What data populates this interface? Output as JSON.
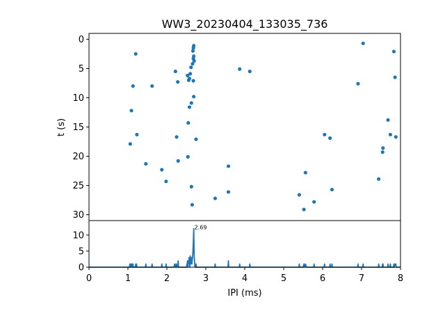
{
  "chart_data": [
    {
      "type": "scatter",
      "title": "WW3_20230404_133035_736",
      "xlabel": "",
      "ylabel": "t (s)",
      "xlim": [
        0,
        8
      ],
      "ylim": [
        31,
        -1
      ],
      "y_inverted": true,
      "yticks": [
        0,
        5,
        10,
        15,
        20,
        25,
        30
      ],
      "color": "#1f77b4",
      "points": [
        {
          "x": 2.69,
          "y": 1.1
        },
        {
          "x": 2.68,
          "y": 1.5
        },
        {
          "x": 2.67,
          "y": 2.0
        },
        {
          "x": 2.69,
          "y": 2.9
        },
        {
          "x": 2.68,
          "y": 3.3
        },
        {
          "x": 2.7,
          "y": 3.7
        },
        {
          "x": 2.66,
          "y": 4.2
        },
        {
          "x": 2.62,
          "y": 4.8
        },
        {
          "x": 2.6,
          "y": 5.9
        },
        {
          "x": 2.53,
          "y": 6.2
        },
        {
          "x": 2.58,
          "y": 6.7
        },
        {
          "x": 2.56,
          "y": 7.0
        },
        {
          "x": 2.68,
          "y": 7.1
        },
        {
          "x": 2.69,
          "y": 9.8
        },
        {
          "x": 2.63,
          "y": 10.9
        },
        {
          "x": 2.58,
          "y": 11.6
        },
        {
          "x": 2.55,
          "y": 14.3
        },
        {
          "x": 2.75,
          "y": 17.1
        },
        {
          "x": 2.54,
          "y": 20.1
        },
        {
          "x": 2.63,
          "y": 25.2
        },
        {
          "x": 2.65,
          "y": 28.3
        },
        {
          "x": 1.2,
          "y": 2.5
        },
        {
          "x": 1.13,
          "y": 8.0
        },
        {
          "x": 1.09,
          "y": 12.2
        },
        {
          "x": 1.23,
          "y": 16.3
        },
        {
          "x": 1.06,
          "y": 17.9
        },
        {
          "x": 1.46,
          "y": 21.3
        },
        {
          "x": 1.62,
          "y": 8.0
        },
        {
          "x": 1.87,
          "y": 22.3
        },
        {
          "x": 1.98,
          "y": 24.3
        },
        {
          "x": 2.22,
          "y": 5.5
        },
        {
          "x": 2.28,
          "y": 7.3
        },
        {
          "x": 2.25,
          "y": 16.7
        },
        {
          "x": 2.29,
          "y": 20.8
        },
        {
          "x": 3.24,
          "y": 27.2
        },
        {
          "x": 3.58,
          "y": 21.7
        },
        {
          "x": 3.58,
          "y": 26.1
        },
        {
          "x": 3.87,
          "y": 5.1
        },
        {
          "x": 4.13,
          "y": 5.5
        },
        {
          "x": 5.4,
          "y": 26.6
        },
        {
          "x": 5.52,
          "y": 29.1
        },
        {
          "x": 5.56,
          "y": 22.8
        },
        {
          "x": 5.78,
          "y": 27.8
        },
        {
          "x": 6.05,
          "y": 16.3
        },
        {
          "x": 6.19,
          "y": 16.9
        },
        {
          "x": 6.24,
          "y": 25.7
        },
        {
          "x": 6.91,
          "y": 7.6
        },
        {
          "x": 7.04,
          "y": 0.7
        },
        {
          "x": 7.44,
          "y": 23.9
        },
        {
          "x": 7.54,
          "y": 19.3
        },
        {
          "x": 7.55,
          "y": 18.6
        },
        {
          "x": 7.68,
          "y": 13.8
        },
        {
          "x": 7.74,
          "y": 16.3
        },
        {
          "x": 7.83,
          "y": 2.1
        },
        {
          "x": 7.86,
          "y": 6.5
        },
        {
          "x": 7.88,
          "y": 16.7
        }
      ]
    },
    {
      "type": "line",
      "title": "",
      "xlabel": "IPI (ms)",
      "ylabel": "",
      "xlim": [
        0,
        8
      ],
      "ylim": [
        0,
        14.5
      ],
      "xticks": [
        0,
        1,
        2,
        3,
        4,
        5,
        6,
        7,
        8
      ],
      "yticks": [
        0,
        5,
        10
      ],
      "color": "#1f77b4",
      "annotation": {
        "text": "2.69",
        "x": 2.69,
        "y": 12.0
      },
      "x": [
        0,
        1.04,
        1.05,
        1.06,
        1.08,
        1.09,
        1.1,
        1.12,
        1.13,
        1.14,
        1.19,
        1.2,
        1.21,
        1.22,
        1.23,
        1.24,
        1.45,
        1.46,
        1.47,
        1.61,
        1.62,
        1.63,
        1.86,
        1.87,
        1.88,
        1.97,
        1.98,
        1.99,
        2.18,
        2.2,
        2.22,
        2.24,
        2.25,
        2.26,
        2.28,
        2.29,
        2.3,
        2.5,
        2.52,
        2.53,
        2.54,
        2.55,
        2.56,
        2.57,
        2.58,
        2.59,
        2.6,
        2.61,
        2.62,
        2.63,
        2.64,
        2.65,
        2.66,
        2.67,
        2.68,
        2.69,
        2.7,
        2.71,
        2.72,
        2.74,
        2.75,
        2.76,
        3.23,
        3.24,
        3.25,
        3.57,
        3.58,
        3.59,
        3.86,
        3.87,
        3.88,
        4.12,
        4.13,
        4.14,
        5.39,
        5.4,
        5.41,
        5.5,
        5.52,
        5.54,
        5.56,
        5.58,
        5.77,
        5.78,
        5.79,
        6.04,
        6.05,
        6.06,
        6.18,
        6.19,
        6.2,
        6.23,
        6.24,
        6.25,
        6.9,
        6.91,
        6.92,
        7.03,
        7.04,
        7.05,
        7.43,
        7.44,
        7.45,
        7.53,
        7.54,
        7.55,
        7.56,
        7.67,
        7.68,
        7.69,
        7.73,
        7.74,
        7.75,
        7.82,
        7.83,
        7.84,
        7.86,
        7.88,
        7.89,
        8.0
      ],
      "values": [
        0,
        0,
        1.0,
        0,
        1.0,
        0,
        1.0,
        0,
        1.0,
        0,
        0,
        1.0,
        0,
        1.0,
        0,
        0,
        0,
        1.0,
        0,
        0,
        1.0,
        0,
        0,
        1.0,
        0,
        0,
        1.0,
        0,
        0,
        1.0,
        0,
        1.0,
        0,
        0,
        1.0,
        2.0,
        0,
        0,
        1.0,
        2.0,
        0,
        1.0,
        1.5,
        3.0,
        2.5,
        0,
        3.5,
        1.0,
        2.0,
        3.0,
        1.0,
        2.0,
        3.0,
        5.0,
        8.0,
        12.0,
        4.0,
        2.0,
        0,
        0,
        1.0,
        0,
        0,
        1.0,
        0,
        0,
        2.0,
        0,
        0,
        1.0,
        0,
        0,
        1.0,
        0,
        0,
        1.0,
        0,
        0,
        1.0,
        0,
        1.0,
        0,
        0,
        1.0,
        0,
        0,
        1.0,
        0,
        0,
        1.0,
        0,
        0,
        1.0,
        0,
        0,
        1.0,
        0,
        0,
        1.0,
        0,
        0,
        1.0,
        0,
        0,
        1.0,
        1.0,
        0,
        0,
        1.0,
        0,
        0,
        1.0,
        0,
        0,
        1.0,
        0,
        1.0,
        1.0,
        0,
        0
      ]
    }
  ]
}
